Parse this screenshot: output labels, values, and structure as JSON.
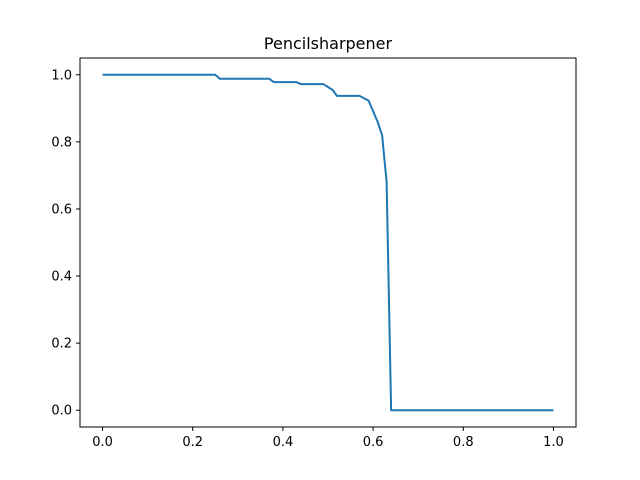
{
  "chart_data": {
    "type": "line",
    "title": "Pencilsharpener",
    "xlabel": "",
    "ylabel": "",
    "xlim": [
      -0.05,
      1.05
    ],
    "ylim": [
      -0.05,
      1.05
    ],
    "grid": false,
    "x_ticks": [
      0.0,
      0.2,
      0.4,
      0.6,
      0.8,
      1.0
    ],
    "x_tick_labels": [
      "0.0",
      "0.2",
      "0.4",
      "0.6",
      "0.8",
      "1.0"
    ],
    "y_ticks": [
      0.0,
      0.2,
      0.4,
      0.6,
      0.8,
      1.0
    ],
    "y_tick_labels": [
      "0.0",
      "0.2",
      "0.4",
      "0.6",
      "0.8",
      "1.0"
    ],
    "colors": {
      "line": "#1f77b4",
      "axes": "#000000"
    },
    "series": [
      {
        "x": [
          0.0,
          0.25,
          0.26,
          0.37,
          0.38,
          0.43,
          0.44,
          0.49,
          0.51,
          0.52,
          0.55,
          0.57,
          0.59,
          0.61,
          0.62,
          0.63,
          0.64,
          0.65,
          1.0
        ],
        "y": [
          1.0,
          1.0,
          0.988,
          0.988,
          0.978,
          0.978,
          0.972,
          0.972,
          0.955,
          0.937,
          0.937,
          0.937,
          0.923,
          0.86,
          0.82,
          0.68,
          0.0,
          0.0,
          0.0
        ]
      }
    ]
  }
}
